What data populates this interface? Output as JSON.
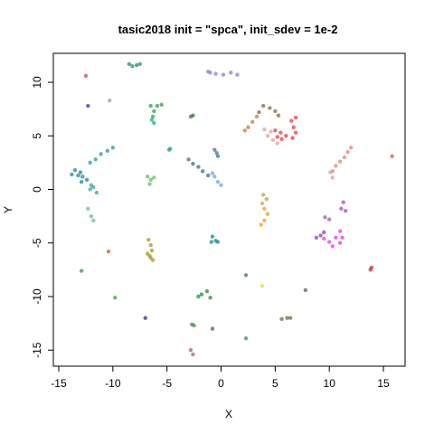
{
  "chart_data": {
    "type": "scatter",
    "title": "tasic2018 init = \"spca\", init_sdev = 1e-2",
    "xlabel": "X",
    "ylabel": "Y",
    "xlim": [
      -15.5,
      17
    ],
    "ylim": [
      -16.5,
      12.7
    ],
    "xticks": [
      -15,
      -10,
      -5,
      0,
      5,
      10,
      15
    ],
    "yticks": [
      -15,
      -10,
      -5,
      0,
      5,
      10
    ],
    "grid": false,
    "legend": "none",
    "clusters": [
      {
        "color": "#2e8b72",
        "points": [
          [
            -8.5,
            11.7
          ],
          [
            -7.8,
            11.6
          ],
          [
            -8.2,
            11.5
          ],
          [
            -7.5,
            11.7
          ]
        ]
      },
      {
        "color": "#8a7fd6",
        "points": [
          [
            -1.2,
            11.0
          ],
          [
            -0.5,
            10.8
          ],
          [
            0.2,
            10.7
          ],
          [
            0.9,
            10.9
          ],
          [
            1.5,
            10.7
          ],
          [
            -1.0,
            10.9
          ]
        ]
      },
      {
        "color": "#c05050",
        "points": [
          [
            -12.5,
            10.6
          ]
        ]
      },
      {
        "color": "#a0a0a0",
        "points": [
          [
            -10.3,
            8.3
          ]
        ]
      },
      {
        "color": "#3a3aa0",
        "points": [
          [
            -12.3,
            7.8
          ]
        ]
      },
      {
        "color": "#2fa050",
        "points": [
          [
            -6.5,
            7.8
          ],
          [
            -6.2,
            7.3
          ],
          [
            -6.3,
            6.8
          ],
          [
            -5.9,
            7.8
          ],
          [
            -5.5,
            7.9
          ]
        ]
      },
      {
        "color": "#1fb080",
        "points": [
          [
            -6.4,
            6.5
          ],
          [
            -6.2,
            6.2
          ]
        ]
      },
      {
        "color": "#407040",
        "points": [
          [
            -2.8,
            6.8
          ],
          [
            -2.6,
            6.9
          ]
        ]
      },
      {
        "color": "#8a6a3a",
        "points": [
          [
            3.5,
            7.2
          ],
          [
            3.9,
            7.8
          ],
          [
            4.5,
            7.6
          ],
          [
            5.0,
            7.3
          ],
          [
            5.3,
            6.9
          ]
        ]
      },
      {
        "color": "#c08040",
        "points": [
          [
            2.2,
            5.5
          ],
          [
            2.5,
            5.8
          ],
          [
            2.9,
            6.3
          ],
          [
            3.3,
            6.8
          ]
        ]
      },
      {
        "color": "#e04040",
        "points": [
          [
            5.0,
            5.5
          ],
          [
            5.5,
            5.3
          ],
          [
            6.0,
            5.0
          ],
          [
            6.6,
            4.8
          ],
          [
            6.9,
            5.3
          ],
          [
            6.7,
            5.8
          ],
          [
            6.5,
            6.4
          ],
          [
            6.9,
            6.7
          ],
          [
            5.6,
            4.7
          ],
          [
            5.2,
            4.9
          ]
        ]
      },
      {
        "color": "#e0a0a0",
        "points": [
          [
            4.3,
            5.0
          ],
          [
            4.8,
            4.6
          ],
          [
            5.2,
            4.3
          ],
          [
            4.6,
            5.4
          ],
          [
            4.0,
            5.6
          ]
        ]
      },
      {
        "color": "#2aa090",
        "points": [
          [
            -4.8,
            3.7
          ],
          [
            -4.7,
            3.8
          ]
        ]
      },
      {
        "color": "#3a7aa0",
        "points": [
          [
            -0.6,
            3.7
          ],
          [
            -0.4,
            3.4
          ],
          [
            -0.3,
            3.1
          ]
        ]
      },
      {
        "color": "#4a6a8a",
        "points": [
          [
            -3.0,
            2.8
          ],
          [
            -2.6,
            2.4
          ],
          [
            -2.1,
            2.1
          ],
          [
            -1.7,
            1.7
          ],
          [
            -1.2,
            1.3
          ]
        ]
      },
      {
        "color": "#6aaae0",
        "points": [
          [
            -0.6,
            1.2
          ],
          [
            -0.3,
            0.7
          ],
          [
            0.0,
            0.4
          ],
          [
            -0.8,
            1.5
          ]
        ]
      },
      {
        "color": "#2a9a9a",
        "points": [
          [
            -10.0,
            3.9
          ],
          [
            -10.5,
            3.6
          ],
          [
            -11.1,
            3.3
          ],
          [
            -11.6,
            2.8
          ],
          [
            -12.1,
            2.5
          ]
        ]
      },
      {
        "color": "#1a8aa0",
        "points": [
          [
            -13.5,
            1.8
          ],
          [
            -13.0,
            1.6
          ],
          [
            -12.8,
            1.2
          ],
          [
            -12.4,
            0.9
          ],
          [
            -12.9,
            0.7
          ],
          [
            -13.2,
            1.3
          ],
          [
            -13.8,
            1.4
          ]
        ]
      },
      {
        "color": "#40a0a0",
        "points": [
          [
            -12.0,
            0.4
          ],
          [
            -11.8,
            0.2
          ],
          [
            -12.1,
            0.0
          ],
          [
            -11.5,
            -0.3
          ]
        ]
      },
      {
        "color": "#60c0a0",
        "points": [
          [
            -12.3,
            -1.8
          ],
          [
            -12.0,
            -2.5
          ],
          [
            -11.8,
            -2.9
          ]
        ]
      },
      {
        "color": "#6aba6a",
        "points": [
          [
            -6.8,
            1.2
          ],
          [
            -6.5,
            0.9
          ],
          [
            -6.6,
            0.5
          ],
          [
            -6.2,
            1.1
          ]
        ]
      },
      {
        "color": "#e8a030",
        "points": [
          [
            3.8,
            -1.3
          ],
          [
            4.0,
            -1.8
          ],
          [
            4.3,
            -2.3
          ],
          [
            4.0,
            -2.9
          ],
          [
            3.7,
            -3.3
          ]
        ]
      },
      {
        "color": "#c0a040",
        "points": [
          [
            3.9,
            -0.5
          ],
          [
            4.2,
            -0.9
          ]
        ]
      },
      {
        "color": "#e88080",
        "points": [
          [
            12.0,
            3.9
          ],
          [
            11.7,
            3.5
          ],
          [
            11.4,
            3.0
          ],
          [
            11.0,
            2.6
          ],
          [
            10.6,
            2.2
          ],
          [
            10.3,
            1.7
          ]
        ]
      },
      {
        "color": "#d0a0a0",
        "points": [
          [
            10.1,
            1.6
          ],
          [
            10.3,
            1.1
          ]
        ]
      },
      {
        "color": "#e05050",
        "points": [
          [
            15.8,
            3.1
          ]
        ]
      },
      {
        "color": "#a050c0",
        "points": [
          [
            11.3,
            -1.2
          ],
          [
            11.1,
            -1.8
          ],
          [
            11.5,
            -2.0
          ]
        ]
      },
      {
        "color": "#a060a0",
        "points": [
          [
            9.6,
            -2.6
          ],
          [
            10.0,
            -2.8
          ]
        ]
      },
      {
        "color": "#e040e0",
        "points": [
          [
            10.6,
            -4.5
          ],
          [
            11.0,
            -5.0
          ],
          [
            10.0,
            -4.9
          ],
          [
            9.5,
            -4.6
          ],
          [
            10.3,
            -5.3
          ],
          [
            11.2,
            -4.5
          ],
          [
            11.0,
            -3.9
          ]
        ]
      },
      {
        "color": "#8a40c0",
        "points": [
          [
            8.8,
            -4.5
          ],
          [
            9.2,
            -4.3
          ],
          [
            9.5,
            -4.0
          ]
        ]
      },
      {
        "color": "#1a8a8a",
        "points": [
          [
            -0.8,
            -4.4
          ],
          [
            -0.5,
            -4.8
          ],
          [
            -0.9,
            -4.9
          ],
          [
            -0.3,
            -4.9
          ]
        ]
      },
      {
        "color": "#a09a2a",
        "points": [
          [
            -6.7,
            -4.7
          ],
          [
            -6.5,
            -5.2
          ],
          [
            -6.4,
            -5.7
          ],
          [
            -6.6,
            -6.2
          ],
          [
            -6.3,
            -6.6
          ],
          [
            -6.5,
            -6.4
          ],
          [
            -6.8,
            -6.0
          ]
        ]
      },
      {
        "color": "#e05050",
        "points": [
          [
            -10.4,
            -5.8
          ]
        ]
      },
      {
        "color": "#4a8a4a",
        "points": [
          [
            -12.9,
            -7.6
          ]
        ]
      },
      {
        "color": "#4a7a4a",
        "points": [
          [
            2.3,
            -8.0
          ]
        ]
      },
      {
        "color": "#e8e040",
        "points": [
          [
            3.8,
            -9.0
          ]
        ]
      },
      {
        "color": "#5a5a5a",
        "points": [
          [
            7.8,
            -9.4
          ]
        ]
      },
      {
        "color": "#c03030",
        "points": [
          [
            13.8,
            -7.5
          ],
          [
            13.9,
            -7.3
          ]
        ]
      },
      {
        "color": "#40a040",
        "points": [
          [
            -9.8,
            -10.1
          ]
        ]
      },
      {
        "color": "#2a8a3a",
        "points": [
          [
            -2.1,
            -10.0
          ],
          [
            -1.8,
            -9.8
          ],
          [
            -1.3,
            -9.5
          ],
          [
            -1.0,
            -10.1
          ]
        ]
      },
      {
        "color": "#2a2aa0",
        "points": [
          [
            -7.0,
            -12.0
          ]
        ]
      },
      {
        "color": "#4a8a4a",
        "points": [
          [
            -2.7,
            -12.6
          ],
          [
            -2.5,
            -12.7
          ]
        ]
      },
      {
        "color": "#5a5a5a",
        "points": [
          [
            -0.8,
            -13.0
          ]
        ]
      },
      {
        "color": "#7a6a4a",
        "points": [
          [
            5.6,
            -12.1
          ],
          [
            6.1,
            -12.0
          ],
          [
            6.4,
            -12.0
          ]
        ]
      },
      {
        "color": "#3a8a7a",
        "points": [
          [
            2.3,
            -13.9
          ]
        ]
      },
      {
        "color": "#a06080",
        "points": [
          [
            -2.8,
            -15.0
          ],
          [
            -2.6,
            -15.4
          ]
        ]
      }
    ]
  }
}
